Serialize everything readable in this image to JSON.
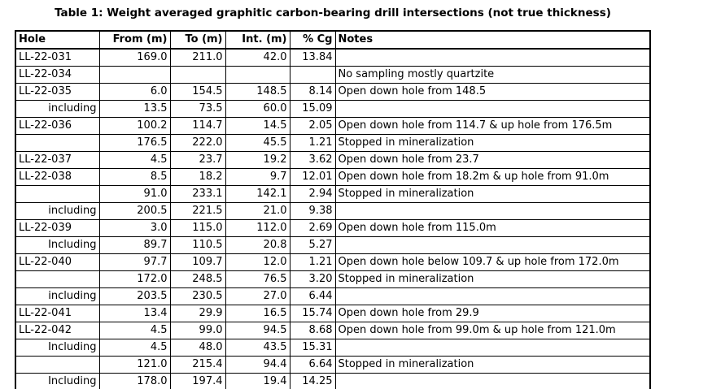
{
  "title": "Table 1: Weight averaged graphitic carbon-bearing drill intersections (not true thickness)",
  "colors": {
    "text": "#000000",
    "border": "#000000",
    "background": "#ffffff"
  },
  "table": {
    "columns": [
      {
        "key": "hole",
        "label": "Hole"
      },
      {
        "key": "from",
        "label": "From (m)"
      },
      {
        "key": "to",
        "label": "To (m)"
      },
      {
        "key": "int",
        "label": "Int. (m)"
      },
      {
        "key": "cg",
        "label": "% Cg"
      },
      {
        "key": "notes",
        "label": "Notes"
      }
    ],
    "rows": [
      {
        "hole": "LL-22-031",
        "from": "169.0",
        "to": "211.0",
        "int": "42.0",
        "cg": "13.84",
        "notes": "",
        "sub": false
      },
      {
        "hole": "LL-22-034",
        "from": "",
        "to": "",
        "int": "",
        "cg": "",
        "notes": "No sampling mostly quartzite",
        "sub": false
      },
      {
        "hole": "LL-22-035",
        "from": "6.0",
        "to": "154.5",
        "int": "148.5",
        "cg": "8.14",
        "notes": "Open down hole from 148.5",
        "sub": false
      },
      {
        "hole": "including",
        "from": "13.5",
        "to": "73.5",
        "int": "60.0",
        "cg": "15.09",
        "notes": "",
        "sub": true
      },
      {
        "hole": "LL-22-036",
        "from": "100.2",
        "to": "114.7",
        "int": "14.5",
        "cg": "2.05",
        "notes": "Open down hole from 114.7 & up hole from 176.5m",
        "sub": false
      },
      {
        "hole": "",
        "from": "176.5",
        "to": "222.0",
        "int": "45.5",
        "cg": "1.21",
        "notes": "Stopped in mineralization",
        "sub": false
      },
      {
        "hole": "LL-22-037",
        "from": "4.5",
        "to": "23.7",
        "int": "19.2",
        "cg": "3.62",
        "notes": "Open down hole from 23.7",
        "sub": false
      },
      {
        "hole": "LL-22-038",
        "from": "8.5",
        "to": "18.2",
        "int": "9.7",
        "cg": "12.01",
        "notes": "Open down hole from 18.2m & up hole from 91.0m",
        "sub": false
      },
      {
        "hole": "",
        "from": "91.0",
        "to": "233.1",
        "int": "142.1",
        "cg": "2.94",
        "notes": "Stopped in mineralization",
        "sub": false
      },
      {
        "hole": "including",
        "from": "200.5",
        "to": "221.5",
        "int": "21.0",
        "cg": "9.38",
        "notes": "",
        "sub": true
      },
      {
        "hole": "LL-22-039",
        "from": "3.0",
        "to": "115.0",
        "int": "112.0",
        "cg": "2.69",
        "notes": "Open down hole from 115.0m",
        "sub": false
      },
      {
        "hole": "Including",
        "from": "89.7",
        "to": "110.5",
        "int": "20.8",
        "cg": "5.27",
        "notes": "",
        "sub": true
      },
      {
        "hole": "LL-22-040",
        "from": "97.7",
        "to": "109.7",
        "int": "12.0",
        "cg": "1.21",
        "notes": "Open down hole below 109.7 & up hole from 172.0m",
        "sub": false
      },
      {
        "hole": "",
        "from": "172.0",
        "to": "248.5",
        "int": "76.5",
        "cg": "3.20",
        "notes": "Stopped in mineralization",
        "sub": false
      },
      {
        "hole": "including",
        "from": "203.5",
        "to": "230.5",
        "int": "27.0",
        "cg": "6.44",
        "notes": "",
        "sub": true
      },
      {
        "hole": "LL-22-041",
        "from": "13.4",
        "to": "29.9",
        "int": "16.5",
        "cg": "15.74",
        "notes": "Open down hole from 29.9",
        "sub": false
      },
      {
        "hole": "LL-22-042",
        "from": "4.5",
        "to": "99.0",
        "int": "94.5",
        "cg": "8.68",
        "notes": "Open down hole from 99.0m & up hole from 121.0m",
        "sub": false
      },
      {
        "hole": "Including",
        "from": "4.5",
        "to": "48.0",
        "int": "43.5",
        "cg": "15.31",
        "notes": "",
        "sub": true
      },
      {
        "hole": "",
        "from": "121.0",
        "to": "215.4",
        "int": "94.4",
        "cg": "6.64",
        "notes": "Stopped in mineralization",
        "sub": false
      },
      {
        "hole": "Including",
        "from": "178.0",
        "to": "197.4",
        "int": "19.4",
        "cg": "14.25",
        "notes": "",
        "sub": true
      }
    ]
  }
}
